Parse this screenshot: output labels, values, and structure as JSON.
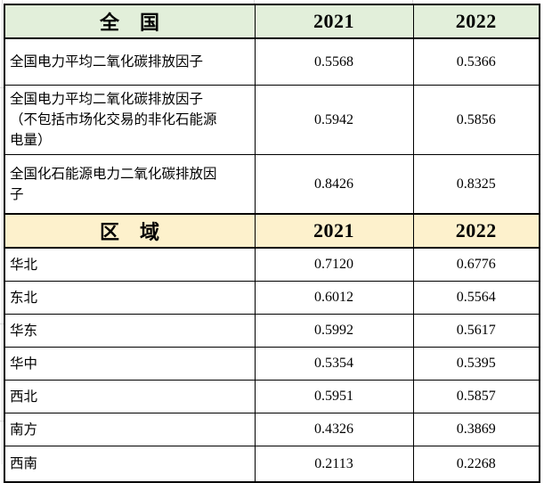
{
  "colors": {
    "national_header_bg": "#e2efda",
    "regional_header_bg": "#fdf1cc",
    "table_border": "#000000",
    "grid_line": "#d9d9d9"
  },
  "chart_data": {
    "type": "table",
    "sections": [
      {
        "title": "全　国",
        "columns": [
          "2021",
          "2022"
        ],
        "rows": [
          {
            "label": "全国电力平均二氧化碳排放因子",
            "display": [
              "0.5568",
              "0.5366"
            ],
            "values": [
              0.5568,
              0.5366
            ]
          },
          {
            "label": "全国电力平均二氧化碳排放因子\n（不包括市场化交易的非化石能源\n电量）",
            "display": [
              "0.5942",
              "0.5856"
            ],
            "values": [
              0.5942,
              0.5856
            ]
          },
          {
            "label": "全国化石能源电力二氧化碳排放因\n子",
            "display": [
              "0.8426",
              "0.8325"
            ],
            "values": [
              0.8426,
              0.8325
            ]
          }
        ]
      },
      {
        "title": "区　域",
        "columns": [
          "2021",
          "2022"
        ],
        "rows": [
          {
            "label": "华北",
            "display": [
              "0.7120",
              "0.6776"
            ],
            "values": [
              0.712,
              0.6776
            ]
          },
          {
            "label": "东北",
            "display": [
              "0.6012",
              "0.5564"
            ],
            "values": [
              0.6012,
              0.5564
            ]
          },
          {
            "label": "华东",
            "display": [
              "0.5992",
              "0.5617"
            ],
            "values": [
              0.5992,
              0.5617
            ]
          },
          {
            "label": "华中",
            "display": [
              "0.5354",
              "0.5395"
            ],
            "values": [
              0.5354,
              0.5395
            ]
          },
          {
            "label": "西北",
            "display": [
              "0.5951",
              "0.5857"
            ],
            "values": [
              0.5951,
              0.5857
            ]
          },
          {
            "label": "南方",
            "display": [
              "0.4326",
              "0.3869"
            ],
            "values": [
              0.4326,
              0.3869
            ]
          },
          {
            "label": "西南",
            "display": [
              "0.2113",
              "0.2268"
            ],
            "values": [
              0.2113,
              0.2268
            ]
          }
        ]
      }
    ]
  }
}
